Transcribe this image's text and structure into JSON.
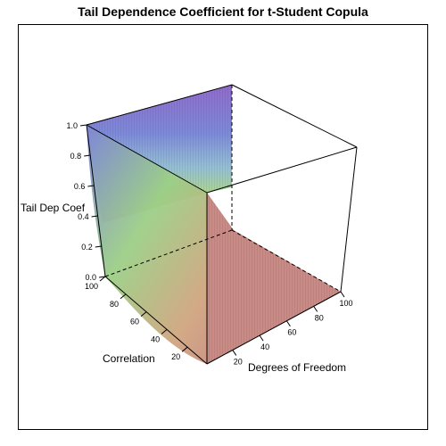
{
  "chart_data": {
    "type": "surface3d",
    "title": "Tail Dependence Coefficient for t-Student Copula",
    "zlabel": "Tail Dep Coef",
    "xlabel": "Correlation",
    "ylabel": "Degrees of Freedom",
    "z_ticks": [
      "0.0",
      "0.2",
      "0.4",
      "0.6",
      "0.8",
      "1.0"
    ],
    "z_tick_values": [
      0.0,
      0.2,
      0.4,
      0.6,
      0.8,
      1.0
    ],
    "x_ticks": [
      "20",
      "40",
      "60",
      "80",
      "100"
    ],
    "x_tick_values": [
      20,
      40,
      60,
      80,
      100
    ],
    "y_ticks": [
      "20",
      "40",
      "60",
      "80",
      "100"
    ],
    "y_tick_values": [
      20,
      40,
      60,
      80,
      100
    ],
    "xlim": [
      1,
      100
    ],
    "ylim": [
      1,
      100
    ],
    "zlim": [
      0,
      1
    ],
    "surface_description": "Coefficient is 1.0 at the edge where degrees of freedom is smallest, and decays toward 0.0 as degrees of freedom increase.",
    "colors": {
      "high": "#6a6fd8",
      "mid_high": "#9aa3e6",
      "mid": "#a6d48a",
      "mid_low": "#d6c27a",
      "low": "#c98a86"
    }
  }
}
